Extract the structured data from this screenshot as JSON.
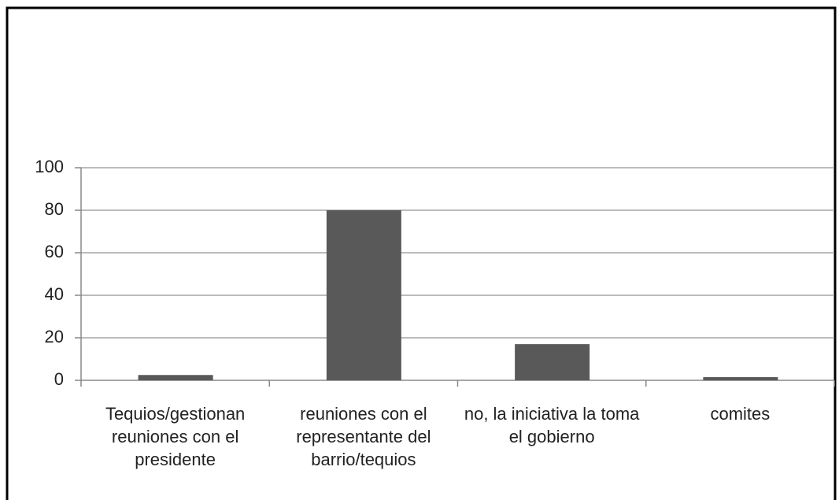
{
  "chart_data": {
    "type": "bar",
    "categories": [
      "Tequios/gestionan reuniones con el presidente",
      "reuniones con el representante del barrio/tequios",
      "no, la iniciativa la toma el gobierno",
      "comites"
    ],
    "values": [
      2.5,
      80,
      17,
      1.5
    ],
    "color": "#595959",
    "ylim": [
      0,
      100
    ],
    "yticks": [
      0,
      20,
      40,
      60,
      80,
      100
    ],
    "grid": true
  }
}
